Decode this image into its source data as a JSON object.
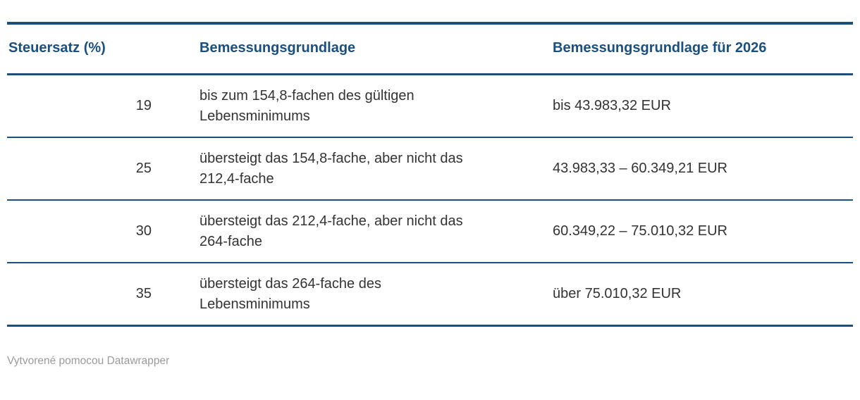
{
  "chart_data": {
    "type": "table",
    "columns": [
      "Steuersatz (%)",
      "Bemessungsgrundlage",
      "Bemessungsgrundlage für 2026"
    ],
    "rows": [
      [
        "19",
        "bis zum 154,8-fachen des gültigen Lebensminimums",
        "bis 43.983,32 EUR"
      ],
      [
        "25",
        "übersteigt das 154,8-fache, aber nicht das 212,4-fache",
        "43.983,33 – 60.349,21 EUR"
      ],
      [
        "30",
        "übersteigt das 212,4-fache, aber nicht das 264-fache",
        "60.349,22 – 75.010,32 EUR"
      ],
      [
        "35",
        "übersteigt das 264-fache des Lebensminimums",
        "über 75.010,32 EUR"
      ]
    ],
    "layout_hints": {
      "rate_column_align": "right",
      "header_valign": "bottom",
      "grid": "horizontal-rules-only"
    }
  },
  "footer": {
    "attribution": "Vytvorené pomocou Datawrapper"
  },
  "colors": {
    "accent": "#1b4f7e",
    "body_text": "#333333",
    "footer_text": "#9b9b9b",
    "background": "#ffffff"
  }
}
